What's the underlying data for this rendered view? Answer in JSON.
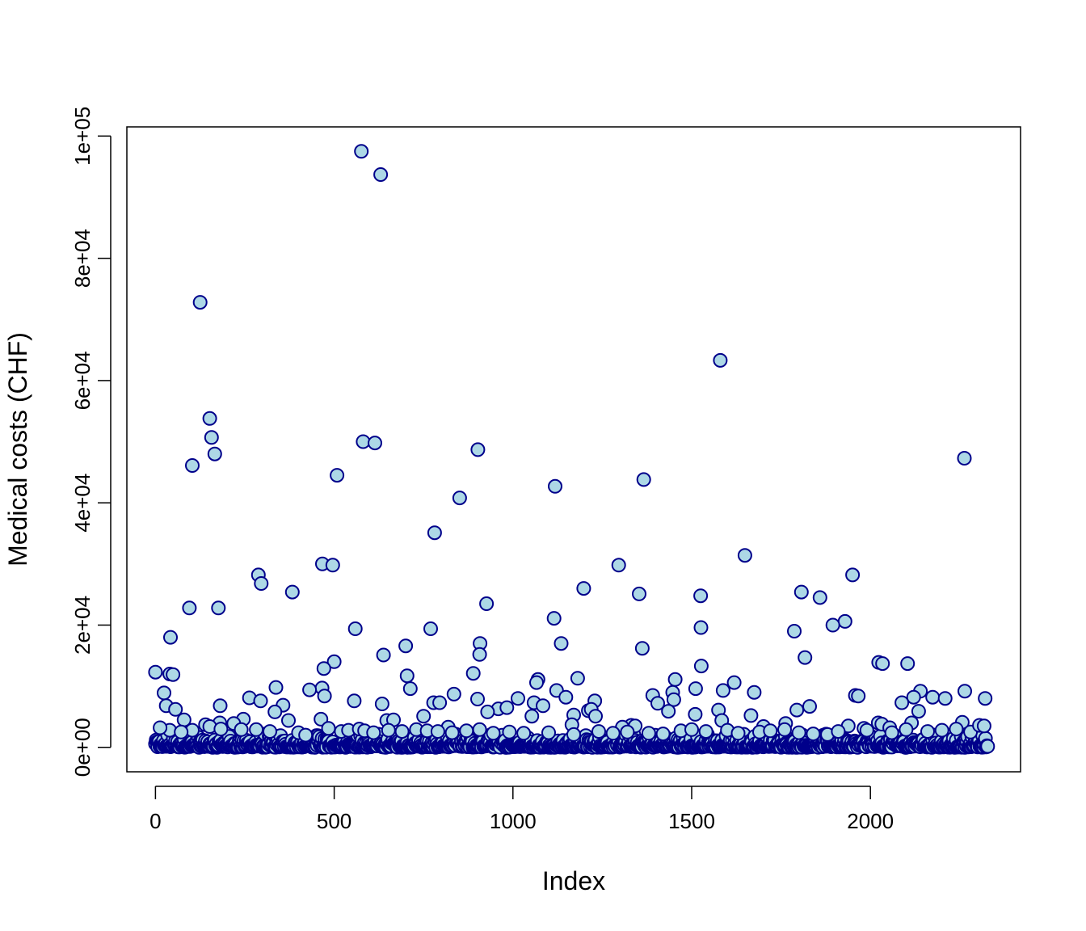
{
  "chart_data": {
    "type": "scatter",
    "title": "",
    "xlabel": "Index",
    "ylabel": "Medical costs (CHF)",
    "xlim": [
      -80,
      2420
    ],
    "ylim": [
      -4000,
      101500
    ],
    "x_ticks": [
      0,
      500,
      1000,
      1500,
      2000
    ],
    "x_tick_labels": [
      "0",
      "500",
      "1000",
      "1500",
      "2000"
    ],
    "y_ticks": [
      0,
      20000,
      40000,
      60000,
      80000,
      100000
    ],
    "y_tick_labels": [
      "0e+00",
      "2e+04",
      "4e+04",
      "6e+04",
      "8e+04",
      "1e+05"
    ],
    "grid": false,
    "legend": "none",
    "marker_fill": "#ADD8E6",
    "marker_stroke": "#00008B",
    "n_points": 2330,
    "points": [
      [
        576,
        97500
      ],
      [
        630,
        93700
      ],
      [
        125,
        72800
      ],
      [
        1580,
        63300
      ],
      [
        152,
        53800
      ],
      [
        157,
        50700
      ],
      [
        166,
        48000
      ],
      [
        581,
        50000
      ],
      [
        614,
        49800
      ],
      [
        902,
        48700
      ],
      [
        2263,
        47300
      ],
      [
        103,
        46100
      ],
      [
        508,
        44500
      ],
      [
        1366,
        43800
      ],
      [
        1118,
        42700
      ],
      [
        851,
        40800
      ],
      [
        781,
        35100
      ],
      [
        1649,
        31400
      ],
      [
        467,
        30000
      ],
      [
        496,
        29800
      ],
      [
        1296,
        29800
      ],
      [
        288,
        28200
      ],
      [
        1950,
        28200
      ],
      [
        296,
        26800
      ],
      [
        1198,
        26000
      ],
      [
        383,
        25400
      ],
      [
        1807,
        25400
      ],
      [
        1353,
        25100
      ],
      [
        1859,
        24500
      ],
      [
        1525,
        24800
      ],
      [
        926,
        23500
      ],
      [
        95,
        22800
      ],
      [
        176,
        22800
      ],
      [
        1929,
        20600
      ],
      [
        1895,
        20000
      ],
      [
        559,
        19400
      ],
      [
        1115,
        21100
      ],
      [
        770,
        19400
      ],
      [
        1526,
        19600
      ],
      [
        1787,
        19000
      ],
      [
        42,
        18000
      ],
      [
        700,
        16600
      ],
      [
        1135,
        17000
      ],
      [
        908,
        17000
      ],
      [
        638,
        15100
      ],
      [
        907,
        15200
      ],
      [
        1362,
        16200
      ],
      [
        1817,
        14700
      ],
      [
        500,
        14000
      ],
      [
        2023,
        13900
      ],
      [
        2034,
        13700
      ],
      [
        2104,
        13700
      ],
      [
        1527,
        13300
      ],
      [
        471,
        12900
      ],
      [
        0,
        12300
      ],
      [
        40,
        12000
      ],
      [
        49,
        11900
      ],
      [
        889,
        12100
      ],
      [
        1181,
        11300
      ],
      [
        704,
        11700
      ],
      [
        1070,
        11100
      ],
      [
        1619,
        10600
      ],
      [
        1454,
        11100
      ],
      [
        1066,
        10600
      ],
      [
        466,
        9700
      ],
      [
        337,
        9800
      ],
      [
        431,
        9400
      ],
      [
        713,
        9600
      ],
      [
        1122,
        9300
      ],
      [
        1511,
        9600
      ],
      [
        1588,
        9300
      ],
      [
        1675,
        9000
      ],
      [
        2140,
        9200
      ],
      [
        2264,
        9200
      ],
      [
        1447,
        9000
      ],
      [
        24,
        8900
      ],
      [
        473,
        8400
      ],
      [
        263,
        8100
      ],
      [
        835,
        8700
      ],
      [
        901,
        7900
      ],
      [
        1014,
        8000
      ],
      [
        1148,
        8200
      ],
      [
        1391,
        8500
      ],
      [
        1958,
        8500
      ],
      [
        1966,
        8400
      ],
      [
        2121,
        8200
      ],
      [
        2174,
        8200
      ],
      [
        2209,
        8000
      ],
      [
        2321,
        8000
      ],
      [
        294,
        7600
      ],
      [
        1229,
        7600
      ],
      [
        1450,
        7800
      ],
      [
        1405,
        7200
      ],
      [
        556,
        7600
      ],
      [
        778,
        7300
      ],
      [
        795,
        7300
      ],
      [
        1059,
        7300
      ],
      [
        1084,
        6800
      ],
      [
        1830,
        6700
      ],
      [
        2088,
        7300
      ],
      [
        181,
        6800
      ],
      [
        30,
        6800
      ],
      [
        56,
        6200
      ],
      [
        634,
        7100
      ],
      [
        357,
        6900
      ],
      [
        959,
        6300
      ],
      [
        983,
        6500
      ],
      [
        1211,
        6000
      ],
      [
        1219,
        6200
      ],
      [
        1575,
        6100
      ],
      [
        1794,
        6100
      ],
      [
        1435,
        5900
      ],
      [
        2135,
        5900
      ],
      [
        334,
        5800
      ],
      [
        929,
        5800
      ],
      [
        1170,
        5300
      ],
      [
        1231,
        5100
      ],
      [
        1666,
        5200
      ],
      [
        750,
        5100
      ],
      [
        1053,
        5100
      ],
      [
        1510,
        5400
      ],
      [
        647,
        4400
      ],
      [
        666,
        4500
      ],
      [
        372,
        4400
      ],
      [
        463,
        4600
      ],
      [
        246,
        4600
      ],
      [
        80,
        4500
      ],
      [
        1584,
        4400
      ],
      [
        1763,
        3900
      ],
      [
        2257,
        4100
      ],
      [
        180,
        4000
      ],
      [
        219,
        3900
      ],
      [
        2022,
        4000
      ],
      [
        2032,
        3800
      ],
      [
        2115,
        4000
      ],
      [
        1165,
        3700
      ],
      [
        1331,
        3600
      ],
      [
        1342,
        3500
      ],
      [
        1938,
        3500
      ],
      [
        1306,
        3300
      ],
      [
        1701,
        3400
      ],
      [
        2054,
        3200
      ],
      [
        1982,
        3100
      ],
      [
        819,
        3300
      ],
      [
        907,
        2900
      ],
      [
        140,
        3700
      ],
      [
        152,
        3400
      ],
      [
        183,
        3000
      ],
      [
        103,
        2800
      ],
      [
        40,
        2800
      ],
      [
        13,
        3200
      ],
      [
        72,
        2500
      ],
      [
        240,
        2900
      ],
      [
        282,
        2900
      ],
      [
        320,
        2600
      ],
      [
        400,
        2400
      ],
      [
        420,
        2000
      ],
      [
        484,
        3100
      ],
      [
        520,
        2600
      ],
      [
        540,
        2800
      ],
      [
        570,
        3000
      ],
      [
        585,
        2700
      ],
      [
        610,
        2400
      ],
      [
        652,
        2800
      ],
      [
        690,
        2600
      ],
      [
        730,
        2900
      ],
      [
        760,
        2700
      ],
      [
        790,
        2600
      ],
      [
        830,
        2400
      ],
      [
        870,
        2700
      ],
      [
        945,
        2300
      ],
      [
        990,
        2500
      ],
      [
        1030,
        2300
      ],
      [
        1100,
        2400
      ],
      [
        1170,
        2100
      ],
      [
        1240,
        2600
      ],
      [
        1280,
        2300
      ],
      [
        1320,
        2500
      ],
      [
        1380,
        2300
      ],
      [
        1420,
        2200
      ],
      [
        1470,
        2700
      ],
      [
        1500,
        2900
      ],
      [
        1540,
        2600
      ],
      [
        1600,
        2800
      ],
      [
        1630,
        2300
      ],
      [
        1690,
        2500
      ],
      [
        1720,
        2700
      ],
      [
        1760,
        2900
      ],
      [
        1800,
        2400
      ],
      [
        1840,
        2200
      ],
      [
        1880,
        2100
      ],
      [
        1910,
        2600
      ],
      [
        1990,
        2800
      ],
      [
        2060,
        2400
      ],
      [
        2100,
        2900
      ],
      [
        2160,
        2600
      ],
      [
        2200,
        2800
      ],
      [
        2240,
        3000
      ],
      [
        2280,
        2500
      ],
      [
        2305,
        3600
      ],
      [
        2318,
        3500
      ]
    ]
  }
}
